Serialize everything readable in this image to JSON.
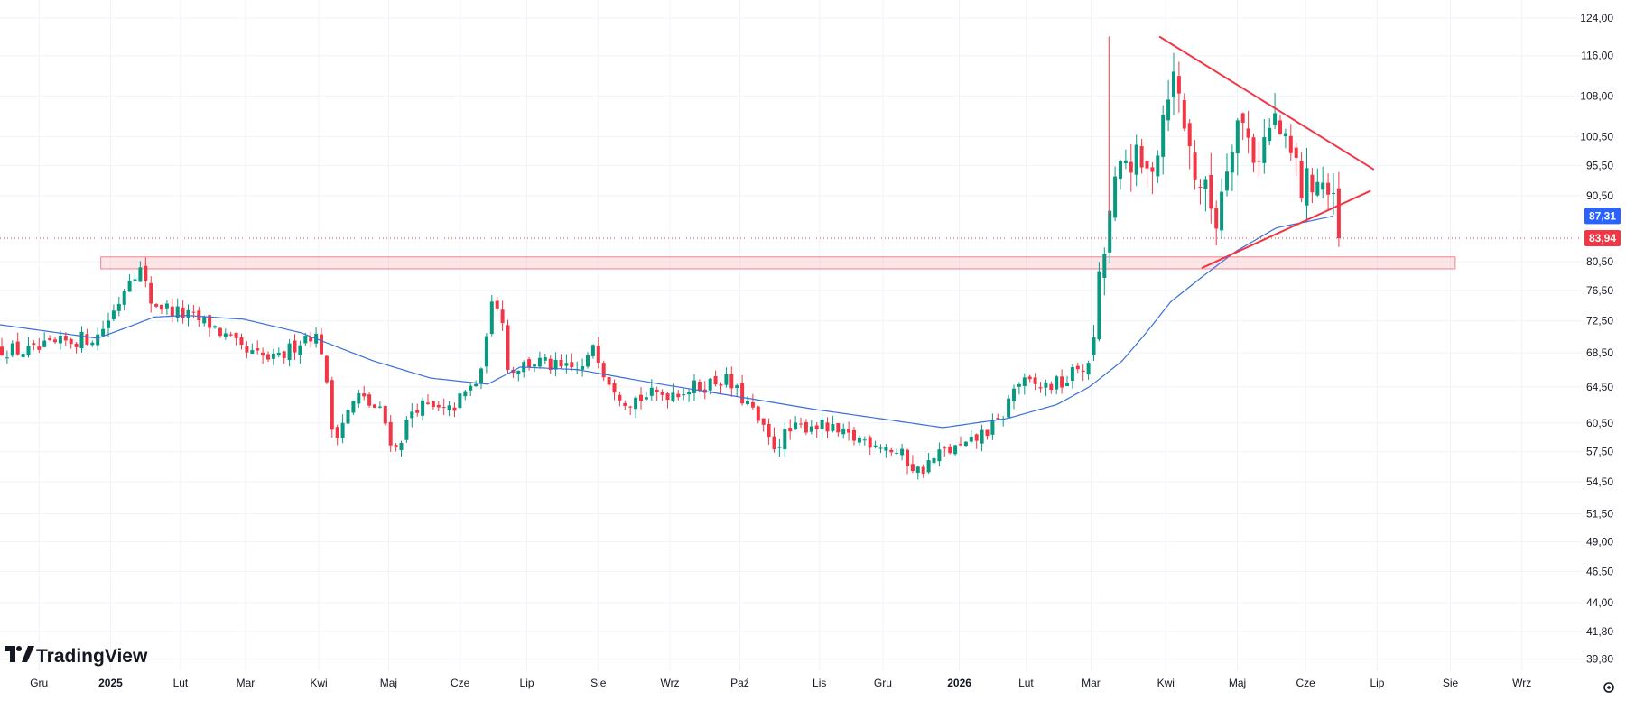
{
  "chart_data": {
    "type": "candlestick",
    "ylim": [
      38.9,
      126.0
    ],
    "y_ticks": [
      {
        "value": 124.0,
        "label": "124,00"
      },
      {
        "value": 116.0,
        "label": "116,00"
      },
      {
        "value": 108.0,
        "label": "108,00"
      },
      {
        "value": 100.5,
        "label": "100,50"
      },
      {
        "value": 95.5,
        "label": "95,50"
      },
      {
        "value": 90.5,
        "label": "90,50"
      },
      {
        "value": 80.5,
        "label": "80,50"
      },
      {
        "value": 76.5,
        "label": "76,50"
      },
      {
        "value": 72.5,
        "label": "72,50"
      },
      {
        "value": 68.5,
        "label": "68,50"
      },
      {
        "value": 64.5,
        "label": "64,50"
      },
      {
        "value": 60.5,
        "label": "60,50"
      },
      {
        "value": 57.5,
        "label": "57,50"
      },
      {
        "value": 54.5,
        "label": "54,50"
      },
      {
        "value": 51.5,
        "label": "51,50"
      },
      {
        "value": 49.0,
        "label": "49,00"
      },
      {
        "value": 46.5,
        "label": "46,50"
      },
      {
        "value": 44.0,
        "label": "44,00"
      },
      {
        "value": 41.8,
        "label": "41,80"
      },
      {
        "value": 39.8,
        "label": "39,80"
      }
    ],
    "x_ticks": [
      {
        "label": "Gru",
        "pos": 0.024,
        "bold": false
      },
      {
        "label": "2025",
        "pos": 0.068,
        "bold": true
      },
      {
        "label": "Lut",
        "pos": 0.111,
        "bold": false
      },
      {
        "label": "Mar",
        "pos": 0.151,
        "bold": false
      },
      {
        "label": "Kwi",
        "pos": 0.196,
        "bold": false
      },
      {
        "label": "Maj",
        "pos": 0.239,
        "bold": false
      },
      {
        "label": "Cze",
        "pos": 0.283,
        "bold": false
      },
      {
        "label": "Lip",
        "pos": 0.324,
        "bold": false
      },
      {
        "label": "Sie",
        "pos": 0.368,
        "bold": false
      },
      {
        "label": "Wrz",
        "pos": 0.412,
        "bold": false
      },
      {
        "label": "Paź",
        "pos": 0.455,
        "bold": false
      },
      {
        "label": "Lis",
        "pos": 0.504,
        "bold": false
      },
      {
        "label": "Gru",
        "pos": 0.543,
        "bold": false
      },
      {
        "label": "2026",
        "pos": 0.59,
        "bold": true
      },
      {
        "label": "Lut",
        "pos": 0.631,
        "bold": false
      },
      {
        "label": "Mar",
        "pos": 0.671,
        "bold": false
      },
      {
        "label": "Kwi",
        "pos": 0.717,
        "bold": false
      },
      {
        "label": "Maj",
        "pos": 0.761,
        "bold": false
      },
      {
        "label": "Cze",
        "pos": 0.803,
        "bold": false
      },
      {
        "label": "Lip",
        "pos": 0.847,
        "bold": false
      },
      {
        "label": "Sie",
        "pos": 0.892,
        "bold": false
      },
      {
        "label": "Wrz",
        "pos": 0.936,
        "bold": false
      }
    ],
    "bullish_color": "#089981",
    "bearish_color": "#f23645",
    "ma_color": "#3a6fd8",
    "anchors": [
      [
        0.0,
        69.0
      ],
      [
        0.02,
        68.6
      ],
      [
        0.04,
        69.8
      ],
      [
        0.06,
        70.6
      ],
      [
        0.072,
        74.5
      ],
      [
        0.08,
        78.8
      ],
      [
        0.086,
        79.5
      ],
      [
        0.093,
        75.0
      ],
      [
        0.11,
        73.5
      ],
      [
        0.13,
        72.0
      ],
      [
        0.15,
        68.5
      ],
      [
        0.17,
        67.5
      ],
      [
        0.19,
        71.0
      ],
      [
        0.197,
        70.0
      ],
      [
        0.205,
        59.0
      ],
      [
        0.22,
        63.5
      ],
      [
        0.235,
        61.5
      ],
      [
        0.243,
        57.5
      ],
      [
        0.255,
        62.5
      ],
      [
        0.275,
        61.5
      ],
      [
        0.29,
        64.5
      ],
      [
        0.297,
        66.0
      ],
      [
        0.3,
        73.5
      ],
      [
        0.308,
        75.5
      ],
      [
        0.312,
        66.5
      ],
      [
        0.33,
        67.5
      ],
      [
        0.345,
        66.5
      ],
      [
        0.36,
        66.5
      ],
      [
        0.365,
        70.0
      ],
      [
        0.372,
        66.0
      ],
      [
        0.385,
        63.0
      ],
      [
        0.4,
        63.5
      ],
      [
        0.415,
        64.0
      ],
      [
        0.43,
        64.5
      ],
      [
        0.445,
        65.5
      ],
      [
        0.46,
        62.5
      ],
      [
        0.475,
        58.0
      ],
      [
        0.485,
        59.5
      ],
      [
        0.5,
        60.5
      ],
      [
        0.52,
        59.0
      ],
      [
        0.54,
        58.5
      ],
      [
        0.555,
        57.0
      ],
      [
        0.565,
        55.5
      ],
      [
        0.58,
        57.5
      ],
      [
        0.595,
        58.0
      ],
      [
        0.605,
        59.5
      ],
      [
        0.615,
        60.5
      ],
      [
        0.625,
        65.0
      ],
      [
        0.64,
        64.5
      ],
      [
        0.655,
        65.0
      ],
      [
        0.664,
        67.0
      ],
      [
        0.67,
        66.5
      ],
      [
        0.675,
        75.5
      ],
      [
        0.684,
        90.0
      ],
      [
        0.694,
        97.5
      ],
      [
        0.705,
        93.5
      ],
      [
        0.712,
        99.5
      ],
      [
        0.72,
        113.0
      ],
      [
        0.726,
        107.0
      ],
      [
        0.733,
        96.0
      ],
      [
        0.741,
        91.0
      ],
      [
        0.748,
        87.0
      ],
      [
        0.754,
        96.0
      ],
      [
        0.76,
        104.0
      ],
      [
        0.766,
        101.5
      ],
      [
        0.772,
        97.0
      ],
      [
        0.778,
        100.0
      ],
      [
        0.785,
        104.0
      ],
      [
        0.79,
        98.0
      ],
      [
        0.796,
        96.5
      ],
      [
        0.801,
        91.0
      ],
      [
        0.808,
        94.0
      ],
      [
        0.814,
        92.5
      ],
      [
        0.821,
        87.5
      ],
      [
        0.824,
        84.3
      ]
    ],
    "ma_anchors": [
      [
        0.0,
        72.0
      ],
      [
        0.035,
        71.0
      ],
      [
        0.06,
        70.3
      ],
      [
        0.08,
        71.8
      ],
      [
        0.095,
        73.0
      ],
      [
        0.115,
        73.2
      ],
      [
        0.15,
        72.7
      ],
      [
        0.185,
        71.0
      ],
      [
        0.2,
        69.8
      ],
      [
        0.23,
        67.5
      ],
      [
        0.265,
        65.5
      ],
      [
        0.3,
        64.8
      ],
      [
        0.32,
        66.8
      ],
      [
        0.355,
        66.5
      ],
      [
        0.4,
        65.0
      ],
      [
        0.45,
        63.5
      ],
      [
        0.5,
        62.0
      ],
      [
        0.54,
        61.0
      ],
      [
        0.58,
        60.0
      ],
      [
        0.62,
        61.0
      ],
      [
        0.65,
        62.5
      ],
      [
        0.67,
        64.5
      ],
      [
        0.69,
        67.5
      ],
      [
        0.705,
        71.0
      ],
      [
        0.72,
        75.0
      ],
      [
        0.74,
        78.5
      ],
      [
        0.76,
        82.0
      ],
      [
        0.785,
        85.5
      ],
      [
        0.805,
        86.5
      ],
      [
        0.82,
        87.3
      ]
    ],
    "resistance_zone": {
      "x_from": 0.062,
      "x_to": 0.895,
      "y_low": 79.5,
      "y_high": 81.2,
      "color": "#f7b7bd"
    },
    "triangle_upper": {
      "x1": 0.713,
      "y1": 120.0,
      "x2": 0.845,
      "y2": 94.8,
      "color": "#f23645"
    },
    "triangle_lower": {
      "x1": 0.739,
      "y1": 79.6,
      "x2": 0.843,
      "y2": 91.3,
      "color": "#f23645"
    },
    "current_price": {
      "value": 83.94,
      "label": "83,94",
      "color": "#f23645"
    },
    "ma_value": {
      "value": 87.31,
      "label": "87,31",
      "color": "#2962ff"
    },
    "spike": {
      "x": 0.682,
      "high": 120.0,
      "low": 87.0
    }
  },
  "branding": {
    "logo_text": "TradingView"
  },
  "controls": {
    "settings_icon": "gear-icon"
  }
}
